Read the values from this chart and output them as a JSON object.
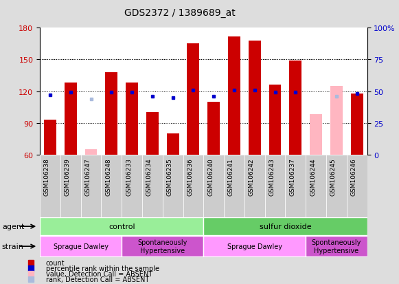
{
  "title": "GDS2372 / 1389689_at",
  "samples": [
    "GSM106238",
    "GSM106239",
    "GSM106247",
    "GSM106248",
    "GSM106233",
    "GSM106234",
    "GSM106235",
    "GSM106236",
    "GSM106240",
    "GSM106241",
    "GSM106242",
    "GSM106243",
    "GSM106237",
    "GSM106244",
    "GSM106245",
    "GSM106246"
  ],
  "count_values": [
    93,
    128,
    null,
    138,
    128,
    100,
    80,
    165,
    110,
    172,
    168,
    126,
    149,
    null,
    null,
    118
  ],
  "count_absent_values": [
    null,
    null,
    65,
    null,
    null,
    null,
    null,
    null,
    null,
    null,
    null,
    null,
    null,
    98,
    125,
    null
  ],
  "percentile_values": [
    47,
    49,
    null,
    49,
    49,
    46,
    45,
    51,
    46,
    51,
    51,
    49,
    49,
    null,
    null,
    48
  ],
  "percentile_absent_values": [
    null,
    null,
    44,
    null,
    null,
    null,
    null,
    null,
    null,
    null,
    null,
    null,
    null,
    null,
    46,
    null
  ],
  "ylim_left": [
    60,
    180
  ],
  "ylim_right": [
    0,
    100
  ],
  "yticks_left": [
    60,
    90,
    120,
    150,
    180
  ],
  "yticks_right": [
    0,
    25,
    50,
    75,
    100
  ],
  "bar_bottom": 60,
  "bar_width": 0.6,
  "count_color": "#CC0000",
  "count_absent_color": "#FFB6C1",
  "percentile_color": "#0000CC",
  "percentile_absent_color": "#AABBDD",
  "agent_groups": [
    {
      "label": "control",
      "start": 0,
      "end": 8,
      "color": "#99EE99"
    },
    {
      "label": "sulfur dioxide",
      "start": 8,
      "end": 16,
      "color": "#66CC66"
    }
  ],
  "strain_groups": [
    {
      "label": "Sprague Dawley",
      "start": 0,
      "end": 4,
      "color": "#FF99FF"
    },
    {
      "label": "Spontaneously\nHypertensive",
      "start": 4,
      "end": 8,
      "color": "#CC55CC"
    },
    {
      "label": "Sprague Dawley",
      "start": 8,
      "end": 13,
      "color": "#FF99FF"
    },
    {
      "label": "Spontaneously\nHypertensive",
      "start": 13,
      "end": 16,
      "color": "#CC55CC"
    }
  ],
  "legend_items": [
    {
      "label": "count",
      "color": "#CC0000"
    },
    {
      "label": "percentile rank within the sample",
      "color": "#0000CC"
    },
    {
      "label": "value, Detection Call = ABSENT",
      "color": "#FFB6C1"
    },
    {
      "label": "rank, Detection Call = ABSENT",
      "color": "#AABBDD"
    }
  ],
  "grid_yticks": [
    90,
    120,
    150
  ],
  "tick_label_color_left": "#CC0000",
  "tick_label_color_right": "#0000CC",
  "bg_color": "#DDDDDD",
  "plot_area_color": "#FFFFFF",
  "xticklabel_bg": "#CCCCCC"
}
